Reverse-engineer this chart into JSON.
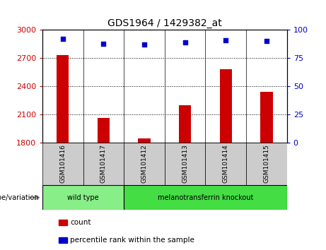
{
  "title": "GDS1964 / 1429382_at",
  "samples": [
    "GSM101416",
    "GSM101417",
    "GSM101412",
    "GSM101413",
    "GSM101414",
    "GSM101415"
  ],
  "counts": [
    2730,
    2060,
    1840,
    2200,
    2580,
    2340
  ],
  "percentile_ranks": [
    92,
    88,
    87,
    89,
    91,
    90
  ],
  "ylim_left": [
    1800,
    3000
  ],
  "yticks_left": [
    1800,
    2100,
    2400,
    2700,
    3000
  ],
  "ylim_right": [
    0,
    100
  ],
  "yticks_right": [
    0,
    25,
    50,
    75,
    100
  ],
  "bar_color": "#cc0000",
  "dot_color": "#0000cc",
  "grid_color": "#000000",
  "groups": [
    {
      "label": "wild type",
      "indices": [
        0,
        1
      ],
      "color": "#88ee88"
    },
    {
      "label": "melanotransferrin knockout",
      "indices": [
        2,
        3,
        4,
        5
      ],
      "color": "#44dd44"
    }
  ],
  "genotype_label": "genotype/variation",
  "legend_count_label": "count",
  "legend_pct_label": "percentile rank within the sample",
  "bg_color": "#ffffff",
  "plot_bg_color": "#ffffff",
  "sample_bg_color": "#cccccc",
  "separator_color": "#000000"
}
